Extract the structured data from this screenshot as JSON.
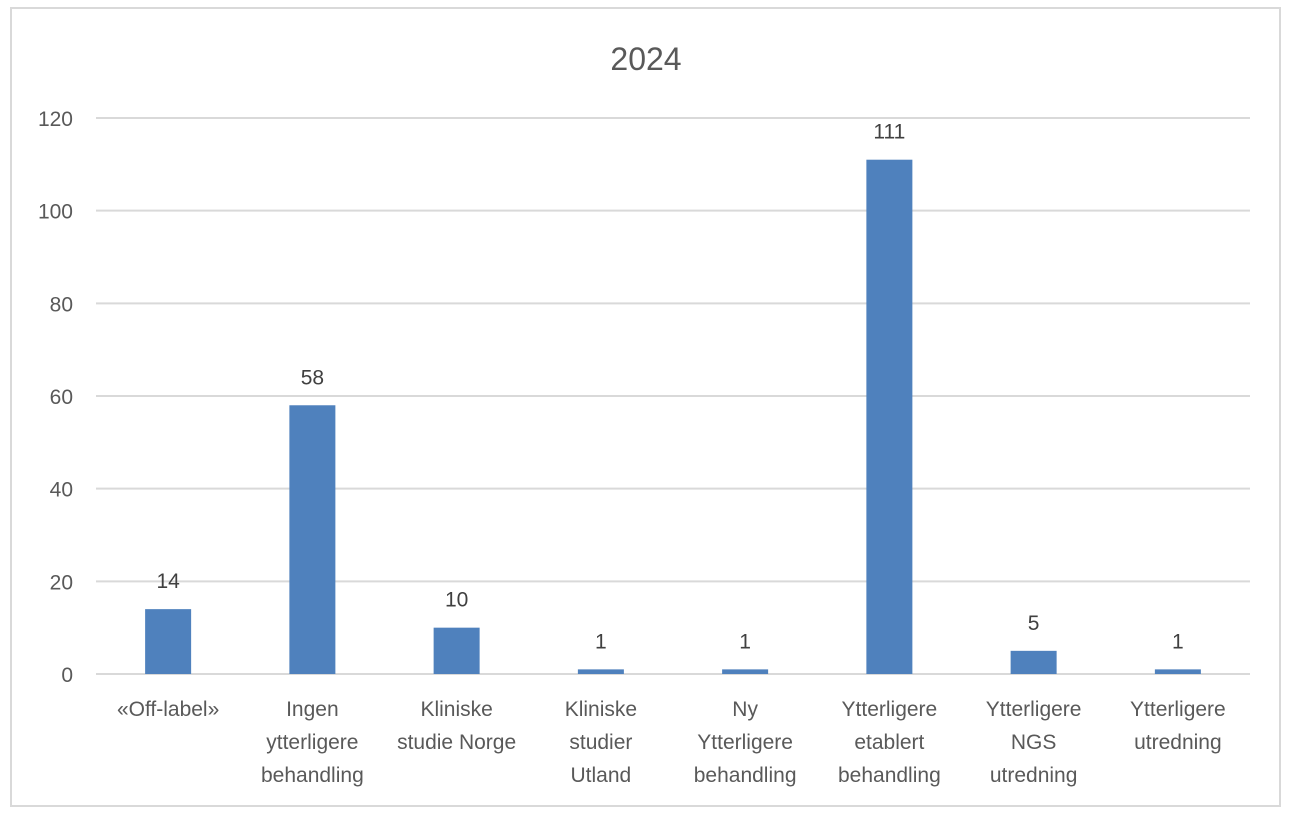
{
  "chart_data": {
    "type": "bar",
    "title": "2024",
    "xlabel": "",
    "ylabel": "",
    "categories": [
      [
        "«Off-label»"
      ],
      [
        "Ingen",
        "ytterligere",
        "behandling"
      ],
      [
        "Kliniske",
        "studie Norge"
      ],
      [
        "Kliniske",
        "studier",
        "Utland"
      ],
      [
        "Ny",
        "Ytterligere",
        "behandling"
      ],
      [
        "Ytterligere",
        "etablert",
        "behandling"
      ],
      [
        "Ytterligere",
        "NGS",
        "utredning"
      ],
      [
        "Ytterligere",
        "utredning"
      ]
    ],
    "values": [
      14,
      58,
      10,
      1,
      1,
      111,
      5,
      1
    ],
    "ylim": [
      0,
      120
    ],
    "yticks": [
      0,
      20,
      40,
      60,
      80,
      100,
      120
    ],
    "grid": true,
    "legend": "none",
    "colors": {
      "bar": "#4f81bd",
      "grid": "#d9d9d9",
      "text": "#595959",
      "frame": "#d9d9d9"
    }
  }
}
